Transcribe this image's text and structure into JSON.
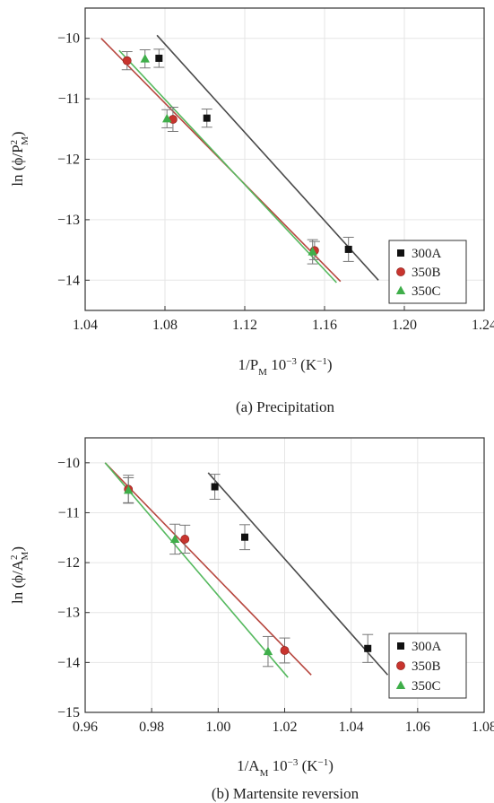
{
  "chart_data": [
    {
      "type": "scatter",
      "caption": "(a) Precipitation",
      "ylabel_base": "ln (ϕ/P",
      "ylabel_sup": "2",
      "ylabel_sub": "M",
      "ylabel_tail": ")",
      "xlabel_base": "1/P",
      "xlabel_sub": "M",
      "xlabel_tail": " 10",
      "xlabel_exp": "−3",
      "xlabel_unit": " (K",
      "xlabel_unit_exp": "−1",
      "xlabel_unit_tail": ")",
      "xlim": [
        1.04,
        1.24
      ],
      "ylim": [
        -14.5,
        -9.5
      ],
      "xticks": [
        "1.04",
        "1.08",
        "1.12",
        "1.16",
        "1.20",
        "1.24"
      ],
      "yticks": [
        "−10",
        "−11",
        "−12",
        "−13",
        "−14"
      ],
      "grid": true,
      "legend_position": "bottom-right",
      "series": [
        {
          "name": "300A",
          "marker": "square",
          "color": "#111111",
          "line_color": "#4a4a4a",
          "points": [
            {
              "x": 1.077,
              "y": -10.33,
              "err": 0.15
            },
            {
              "x": 1.101,
              "y": -11.32,
              "err": 0.15
            },
            {
              "x": 1.172,
              "y": -13.49,
              "err": 0.2
            }
          ],
          "fit": [
            [
              1.076,
              -9.95
            ],
            [
              1.187,
              -14.0
            ]
          ]
        },
        {
          "name": "350B",
          "marker": "circle",
          "color": "#c8342e",
          "line_color": "#b7473f",
          "points": [
            {
              "x": 1.061,
              "y": -10.37,
              "err": 0.15
            },
            {
              "x": 1.084,
              "y": -11.34,
              "err": 0.2
            },
            {
              "x": 1.155,
              "y": -13.51,
              "err": 0.15
            }
          ],
          "fit": [
            [
              1.048,
              -10.0
            ],
            [
              1.168,
              -14.02
            ]
          ]
        },
        {
          "name": "350C",
          "marker": "triangle",
          "color": "#3fae4a",
          "line_color": "#56b95f",
          "points": [
            {
              "x": 1.07,
              "y": -10.34,
              "err": 0.15
            },
            {
              "x": 1.081,
              "y": -11.33,
              "err": 0.15
            },
            {
              "x": 1.154,
              "y": -13.53,
              "err": 0.2
            }
          ],
          "fit": [
            [
              1.057,
              -10.2
            ],
            [
              1.166,
              -14.04
            ]
          ]
        }
      ]
    },
    {
      "type": "scatter",
      "caption": "(b) Martensite reversion",
      "ylabel_base": "ln (ϕ/A",
      "ylabel_sup": "2",
      "ylabel_sub": "M",
      "ylabel_tail": ")",
      "xlabel_base": "1/A",
      "xlabel_sub": "M",
      "xlabel_tail": " 10",
      "xlabel_exp": "−3",
      "xlabel_unit": " (K",
      "xlabel_unit_exp": "−1",
      "xlabel_unit_tail": ")",
      "xlim": [
        0.96,
        1.08
      ],
      "ylim": [
        -15,
        -9.5
      ],
      "xticks": [
        "0.96",
        "0.98",
        "1.00",
        "1.02",
        "1.04",
        "1.06",
        "1.08"
      ],
      "yticks": [
        "−10",
        "−11",
        "−12",
        "−13",
        "−14",
        "−15"
      ],
      "grid": true,
      "legend_position": "bottom-right",
      "series": [
        {
          "name": "300A",
          "marker": "square",
          "color": "#111111",
          "line_color": "#4a4a4a",
          "points": [
            {
              "x": 0.999,
              "y": -10.48,
              "err": 0.25
            },
            {
              "x": 1.008,
              "y": -11.49,
              "err": 0.25
            },
            {
              "x": 1.045,
              "y": -13.72,
              "err": 0.28
            }
          ],
          "fit": [
            [
              0.997,
              -10.2
            ],
            [
              1.051,
              -14.25
            ]
          ]
        },
        {
          "name": "350B",
          "marker": "circle",
          "color": "#c8342e",
          "line_color": "#b7473f",
          "points": [
            {
              "x": 0.973,
              "y": -10.53,
              "err": 0.28
            },
            {
              "x": 0.99,
              "y": -11.53,
              "err": 0.28
            },
            {
              "x": 1.02,
              "y": -13.76,
              "err": 0.25
            }
          ],
          "fit": [
            [
              0.966,
              -10.0
            ],
            [
              1.028,
              -14.25
            ]
          ]
        },
        {
          "name": "350C",
          "marker": "triangle",
          "color": "#3fae4a",
          "line_color": "#56b95f",
          "points": [
            {
              "x": 0.973,
              "y": -10.55,
              "err": 0.25
            },
            {
              "x": 0.987,
              "y": -11.53,
              "err": 0.3
            },
            {
              "x": 1.015,
              "y": -13.78,
              "err": 0.3
            }
          ],
          "fit": [
            [
              0.966,
              -10.0
            ],
            [
              1.021,
              -14.3
            ]
          ]
        }
      ]
    }
  ]
}
